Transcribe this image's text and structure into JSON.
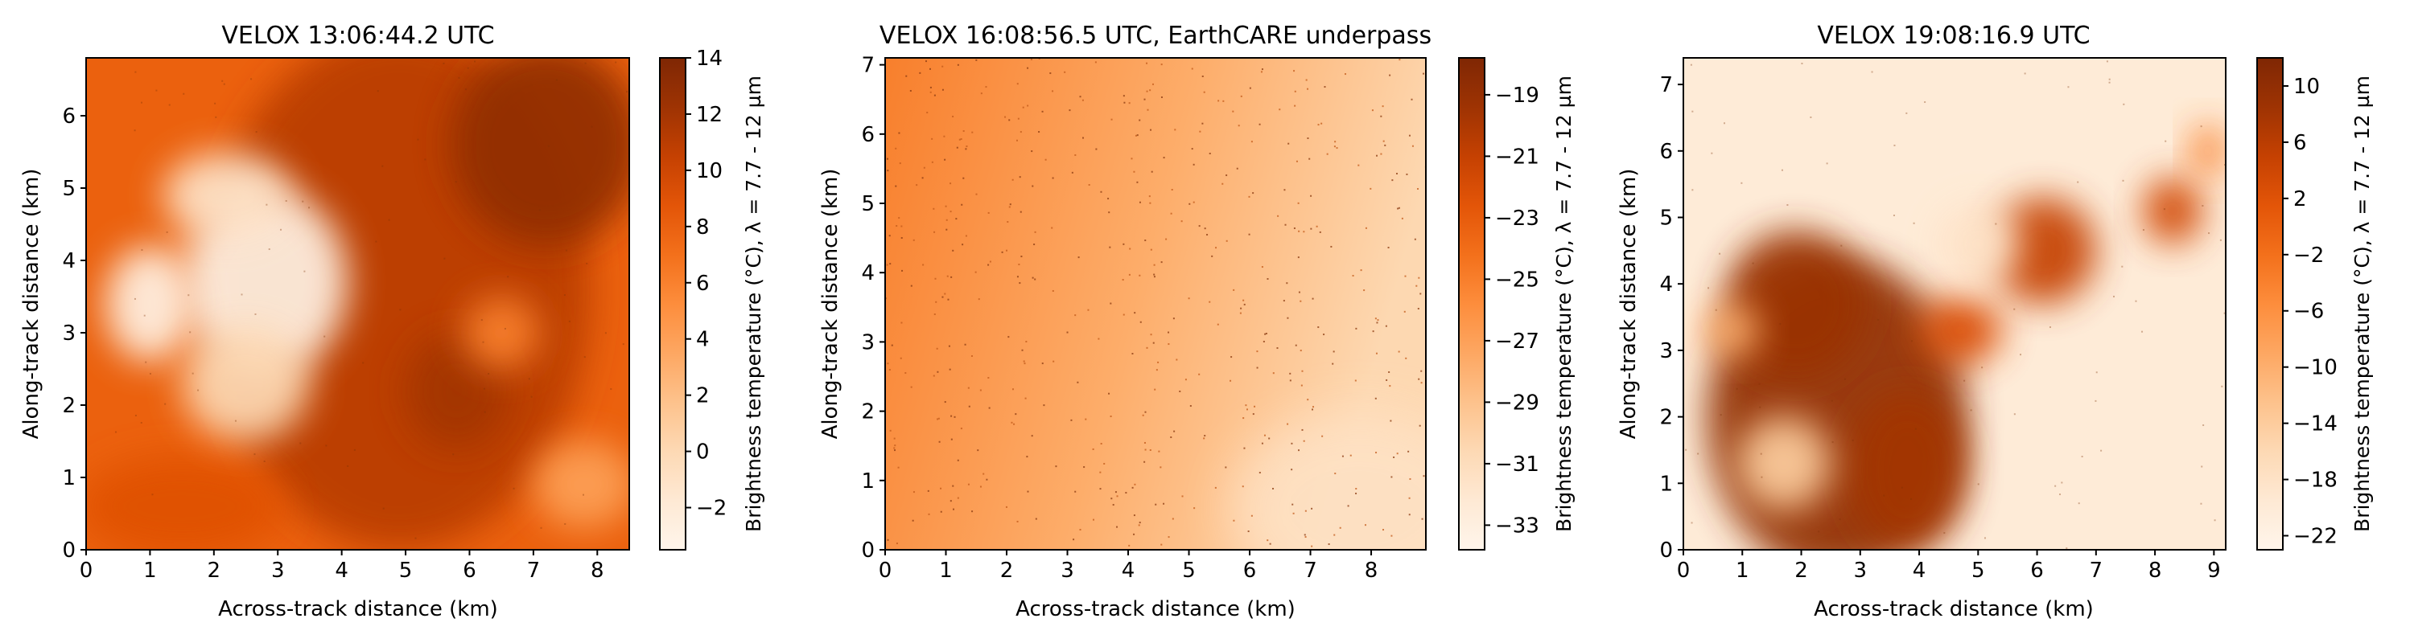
{
  "chart_data": [
    {
      "type": "heatmap",
      "title": "VELOX 13:06:44.2 UTC",
      "xlabel": "Across-track distance (km)",
      "ylabel": "Along-track distance (km)",
      "colorbar_label": "Brightness temperature (°C), λ = 7.7 - 12 µm",
      "xlim": [
        0,
        8.5
      ],
      "ylim": [
        0,
        6.8
      ],
      "xticks": [
        0,
        1,
        2,
        3,
        4,
        5,
        6,
        7,
        8
      ],
      "yticks": [
        0,
        1,
        2,
        3,
        4,
        5,
        6
      ],
      "colorbar_range": [
        -3.5,
        14
      ],
      "colorbar_ticks": [
        "−2",
        "0",
        "2",
        "4",
        "6",
        "8",
        "10",
        "12",
        "14"
      ],
      "colorbar_tick_values": [
        -2,
        0,
        2,
        4,
        6,
        8,
        10,
        12,
        14
      ],
      "colormap": "Oranges_r",
      "warm_regions": [
        {
          "x": 4.9,
          "y": 3.6,
          "rx": 3.0,
          "ry": 3.6,
          "value": 11
        },
        {
          "x": 7.2,
          "y": 5.6,
          "rx": 1.5,
          "ry": 1.4,
          "value": 13
        },
        {
          "x": 1.5,
          "y": 0.6,
          "rx": 1.6,
          "ry": 0.7,
          "value": 9
        },
        {
          "x": 5.8,
          "y": 2.2,
          "rx": 0.8,
          "ry": 0.8,
          "value": 12
        }
      ],
      "cold_regions": [
        {
          "x": 2.8,
          "y": 3.7,
          "rx": 1.3,
          "ry": 1.3,
          "value": -3
        },
        {
          "x": 1.0,
          "y": 3.4,
          "rx": 0.7,
          "ry": 0.8,
          "value": -3
        },
        {
          "x": 2.2,
          "y": 4.9,
          "rx": 1.0,
          "ry": 0.6,
          "value": -1
        },
        {
          "x": 2.5,
          "y": 2.3,
          "rx": 1.0,
          "ry": 0.8,
          "value": 0
        },
        {
          "x": 7.8,
          "y": 0.9,
          "rx": 0.8,
          "ry": 0.6,
          "value": 4
        },
        {
          "x": 6.5,
          "y": 3.0,
          "rx": 0.6,
          "ry": 0.5,
          "value": 6
        }
      ]
    },
    {
      "type": "heatmap",
      "title": "VELOX 16:08:56.5 UTC, EarthCARE underpass",
      "xlabel": "Across-track distance (km)",
      "ylabel": "Along-track distance (km)",
      "colorbar_label": "Brightness temperature (°C), λ = 7.7 - 12 µm",
      "xlim": [
        0,
        8.9
      ],
      "ylim": [
        0,
        7.1
      ],
      "xticks": [
        0,
        1,
        2,
        3,
        4,
        5,
        6,
        7,
        8
      ],
      "yticks": [
        0,
        1,
        2,
        3,
        4,
        5,
        6,
        7
      ],
      "colorbar_range": [
        -33.8,
        -17.8
      ],
      "colorbar_ticks": [
        "−19",
        "−21",
        "−23",
        "−25",
        "−27",
        "−29",
        "−31",
        "−33"
      ],
      "colorbar_tick_values": [
        -19,
        -21,
        -23,
        -25,
        -27,
        -29,
        -31,
        -33
      ],
      "colormap": "Oranges_r",
      "left_edge_value": -25.0,
      "right_edge_value": -30.5,
      "bottom_right_value": -31.5
    },
    {
      "type": "heatmap",
      "title": "VELOX 19:08:16.9 UTC",
      "xlabel": "Across-track distance (km)",
      "ylabel": "Along-track distance (km)",
      "colorbar_label": "Brightness temperature (°C), λ = 7.7 - 12 µm",
      "xlim": [
        0,
        9.2
      ],
      "ylim": [
        0,
        7.4
      ],
      "xticks": [
        0,
        1,
        2,
        3,
        4,
        5,
        6,
        7,
        8,
        9
      ],
      "yticks": [
        0,
        1,
        2,
        3,
        4,
        5,
        6,
        7
      ],
      "colorbar_range": [
        -23,
        12
      ],
      "colorbar_ticks": [
        "10",
        "6",
        "2",
        "−2",
        "−6",
        "−10",
        "−14",
        "−18",
        "−22"
      ],
      "colorbar_tick_values": [
        10,
        6,
        2,
        -2,
        -6,
        -10,
        -14,
        -18,
        -22
      ],
      "colormap": "Oranges_r",
      "warm_regions": [
        {
          "x": 2.6,
          "y": 2.0,
          "rx": 2.2,
          "ry": 2.4,
          "value": 10
        },
        {
          "x": 1.9,
          "y": 3.7,
          "rx": 1.2,
          "ry": 1.1,
          "value": 9
        },
        {
          "x": 3.8,
          "y": 1.2,
          "rx": 1.0,
          "ry": 1.2,
          "value": 8
        },
        {
          "x": 6.1,
          "y": 4.5,
          "rx": 0.9,
          "ry": 0.8,
          "value": 5
        },
        {
          "x": 4.7,
          "y": 3.3,
          "rx": 0.7,
          "ry": 0.5,
          "value": 3
        },
        {
          "x": 8.3,
          "y": 5.1,
          "rx": 0.5,
          "ry": 0.5,
          "value": 4
        },
        {
          "x": 8.9,
          "y": 6.0,
          "rx": 0.3,
          "ry": 0.4,
          "value": -4
        }
      ],
      "cold_regions": [
        {
          "x": 1.7,
          "y": 1.3,
          "rx": 0.8,
          "ry": 0.7,
          "value": -14
        },
        {
          "x": 5.0,
          "y": 4.6,
          "rx": 0.7,
          "ry": 0.6,
          "value": -18
        },
        {
          "x": 0.8,
          "y": 3.3,
          "rx": 0.5,
          "ry": 0.4,
          "value": -10
        }
      ],
      "background_value": -20
    }
  ]
}
